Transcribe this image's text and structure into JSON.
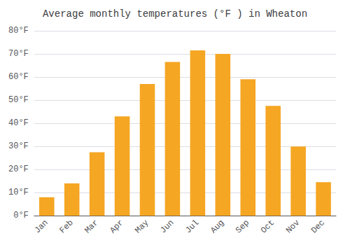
{
  "chart_data": {
    "type": "bar",
    "title": "Average monthly temperatures (°F ) in Wheaton",
    "categories": [
      "Jan",
      "Feb",
      "Mar",
      "Apr",
      "May",
      "Jun",
      "Jul",
      "Aug",
      "Sep",
      "Oct",
      "Nov",
      "Dec"
    ],
    "values": [
      8,
      14,
      27.5,
      43,
      57,
      66.5,
      71.5,
      70,
      59,
      47.5,
      30,
      14.5
    ],
    "color": "#F5A623",
    "ylim": [
      0,
      80
    ],
    "yticks": [
      {
        "value": 0,
        "label": "0°F"
      },
      {
        "value": 10,
        "label": "10°F"
      },
      {
        "value": 20,
        "label": "20°F"
      },
      {
        "value": 30,
        "label": "30°F"
      },
      {
        "value": 40,
        "label": "40°F"
      },
      {
        "value": 50,
        "label": "50°F"
      },
      {
        "value": 60,
        "label": "60°F"
      },
      {
        "value": 70,
        "label": "70°F"
      },
      {
        "value": 80,
        "label": "80°F"
      }
    ],
    "grid": true
  }
}
